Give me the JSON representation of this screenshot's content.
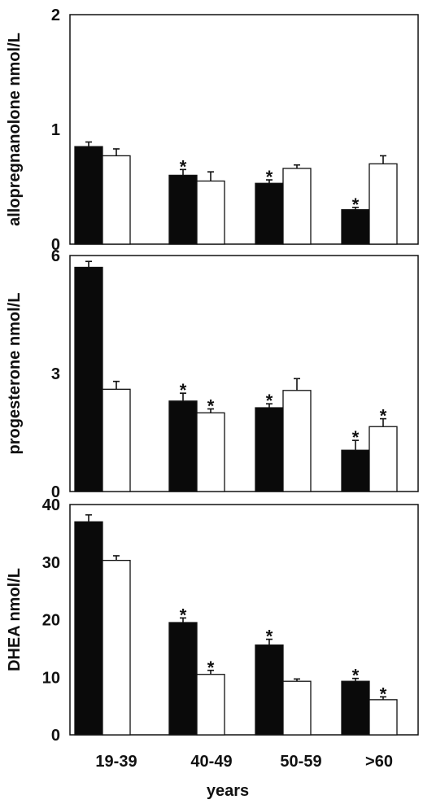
{
  "chart_data": [
    {
      "type": "bar",
      "ylabel": "allopregnanolone nmol/L",
      "ylim": [
        0,
        2
      ],
      "yticks": [
        "0",
        "1",
        "2"
      ],
      "categories": [
        "19-39",
        "40-49",
        "50-59",
        ">60"
      ],
      "series": [
        {
          "fill": "black",
          "values": [
            0.85,
            0.6,
            0.53,
            0.3
          ],
          "errors": [
            0.04,
            0.05,
            0.03,
            0.02
          ],
          "significant": [
            false,
            true,
            true,
            true
          ]
        },
        {
          "fill": "white",
          "values": [
            0.77,
            0.55,
            0.66,
            0.7
          ],
          "errors": [
            0.06,
            0.08,
            0.03,
            0.07
          ],
          "significant": [
            false,
            false,
            false,
            false
          ]
        }
      ]
    },
    {
      "type": "bar",
      "ylabel": "progesterone nmol/L",
      "ylim": [
        0,
        6
      ],
      "yticks": [
        "0",
        "3",
        "6"
      ],
      "categories": [
        "19-39",
        "40-49",
        "50-59",
        ">60"
      ],
      "series": [
        {
          "fill": "black",
          "values": [
            5.7,
            2.3,
            2.13,
            1.05
          ],
          "errors": [
            0.15,
            0.2,
            0.1,
            0.25
          ],
          "significant": [
            false,
            true,
            true,
            true
          ]
        },
        {
          "fill": "white",
          "values": [
            2.6,
            2.0,
            2.57,
            1.65
          ],
          "errors": [
            0.2,
            0.1,
            0.3,
            0.2
          ],
          "significant": [
            false,
            true,
            false,
            true
          ]
        }
      ]
    },
    {
      "type": "bar",
      "ylabel": "DHEA nmol/L",
      "ylim": [
        0,
        40
      ],
      "yticks": [
        "0",
        "10",
        "20",
        "30",
        "40"
      ],
      "categories": [
        "19-39",
        "40-49",
        "50-59",
        ">60"
      ],
      "series": [
        {
          "fill": "black",
          "values": [
            37.0,
            19.5,
            15.6,
            9.3
          ],
          "errors": [
            1.2,
            0.8,
            1.0,
            0.5
          ],
          "significant": [
            false,
            true,
            true,
            true
          ]
        },
        {
          "fill": "white",
          "values": [
            30.3,
            10.5,
            9.3,
            6.1
          ],
          "errors": [
            0.8,
            0.7,
            0.4,
            0.5
          ],
          "significant": [
            false,
            true,
            false,
            true
          ]
        }
      ]
    }
  ],
  "xaxis": {
    "categories": [
      "19-39",
      "40-49",
      "50-59",
      ">60"
    ],
    "label": "years"
  },
  "significance_marker": "*"
}
